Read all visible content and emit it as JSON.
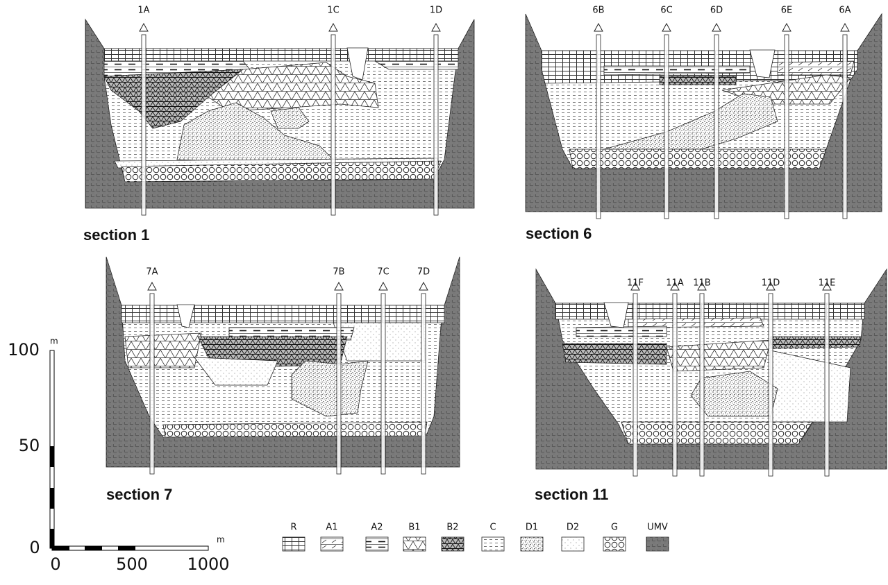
{
  "sections": [
    {
      "name": "section 1",
      "boreholes": [
        "1A",
        "1C",
        "1D"
      ]
    },
    {
      "name": "section 6",
      "boreholes": [
        "6B",
        "6C",
        "6D",
        "6E",
        "6A"
      ]
    },
    {
      "name": "section 7",
      "boreholes": [
        "7A",
        "7B",
        "7C",
        "7D"
      ]
    },
    {
      "name": "section 11",
      "boreholes": [
        "11F",
        "11A",
        "11B",
        "11D",
        "11E"
      ]
    }
  ],
  "scale": {
    "vertical": {
      "unit": "m",
      "ticks": [
        "100",
        "50",
        "0"
      ]
    },
    "horizontal": {
      "unit": "m",
      "ticks": [
        "0",
        "500",
        "1000"
      ]
    }
  },
  "legend": [
    "R",
    "A1",
    "A2",
    "B1",
    "B2",
    "C",
    "D1",
    "D2",
    "G",
    "UMV"
  ]
}
